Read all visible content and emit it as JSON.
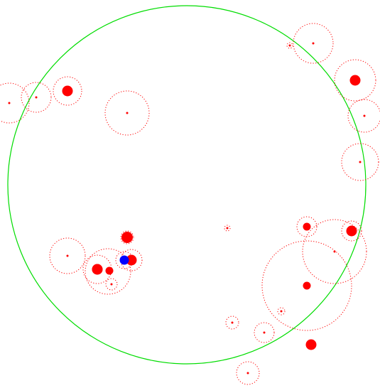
{
  "colors": {
    "background": "#ffffff",
    "boundary": "#00dd00",
    "entity": "#ff0000",
    "player": "#0000ff"
  },
  "boundary": {
    "shape": "circle",
    "stroke": "solid"
  },
  "entities": [
    {
      "kind": "pellet",
      "size": "tiny",
      "ring": "large"
    },
    {
      "kind": "pellet",
      "size": "tiny",
      "ring": "small"
    },
    {
      "kind": "pellet",
      "size": "tiny",
      "ring": "large"
    },
    {
      "kind": "pellet",
      "size": "tiny",
      "ring": "small"
    },
    {
      "kind": "cell",
      "size": "large",
      "ring": "medium"
    },
    {
      "kind": "pellet",
      "size": "tiny",
      "ring": "large"
    },
    {
      "kind": "cell",
      "size": "large",
      "ring": "large"
    },
    {
      "kind": "pellet",
      "size": "tiny",
      "ring": "large"
    },
    {
      "kind": "pellet",
      "size": "tiny",
      "ring": "large"
    },
    {
      "kind": "pellet",
      "size": "tiny",
      "ring": "tiny"
    },
    {
      "kind": "cell",
      "size": "medium",
      "ring": "small"
    },
    {
      "kind": "cell",
      "size": "large",
      "ring": "tiny"
    },
    {
      "kind": "cell",
      "size": "medium",
      "ring": "small"
    },
    {
      "kind": "pellet",
      "size": "tiny",
      "ring": "huge"
    },
    {
      "kind": "cell",
      "size": "medium",
      "ring": "none"
    },
    {
      "kind": "pellet",
      "size": "tiny",
      "ring": "small"
    },
    {
      "kind": "pellet",
      "size": "tiny",
      "ring": "large"
    },
    {
      "kind": "cell",
      "size": "large",
      "ring": "none"
    },
    {
      "kind": "cell",
      "size": "medium",
      "ring": "none"
    },
    {
      "kind": "pellet",
      "size": "tiny",
      "ring": "small"
    },
    {
      "kind": "cell",
      "size": "large",
      "ring": "small"
    },
    {
      "kind": "pellet",
      "size": "tiny",
      "ring": "small"
    },
    {
      "kind": "pellet",
      "size": "tiny",
      "ring": "small"
    },
    {
      "kind": "pellet",
      "size": "tiny",
      "ring": "small"
    },
    {
      "kind": "cell",
      "size": "large",
      "ring": "none"
    },
    {
      "kind": "pellet",
      "size": "tiny",
      "ring": "small"
    },
    {
      "kind": "pellet",
      "size": "tiny",
      "ring": "large"
    },
    {
      "kind": "cell",
      "size": "large",
      "ring": "medium"
    }
  ],
  "player": {
    "kind": "player-cell",
    "ring": "small"
  }
}
